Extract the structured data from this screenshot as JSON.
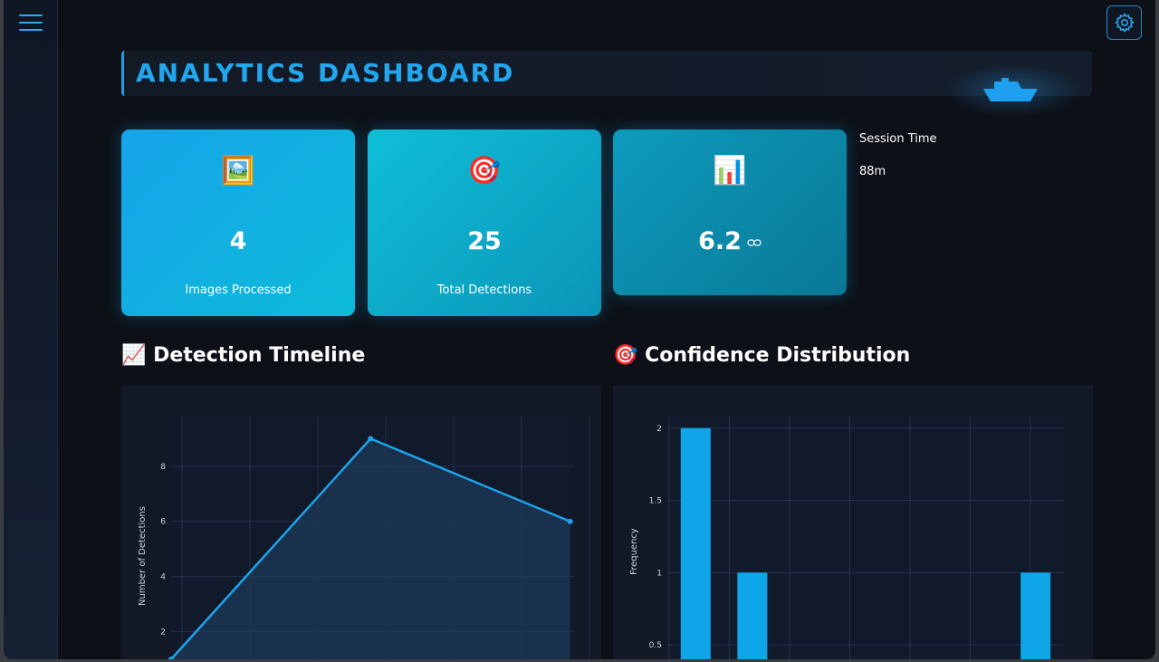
{
  "header": {
    "title": "ANALYTICS DASHBOARD"
  },
  "sidebar": {
    "menu_icon": "hamburger-icon"
  },
  "toolbar": {
    "settings_icon": "gear-icon"
  },
  "colors": {
    "accent": "#1f9de6",
    "background": "#0d1017",
    "panel": "#121826",
    "bar": "#0ea5e9"
  },
  "stats": {
    "images": {
      "icon": "🖼️",
      "value": "4",
      "label": "Images Processed"
    },
    "detections": {
      "icon": "🎯",
      "value": "25",
      "label": "Total Detections"
    },
    "average": {
      "icon": "📊",
      "value": "6.2"
    },
    "session": {
      "label": "Session Time",
      "value": "88m"
    }
  },
  "sections": {
    "timeline": {
      "icon": "📈",
      "title": "Detection Timeline"
    },
    "confidence": {
      "icon": "🎯",
      "title": "Confidence Distribution"
    }
  },
  "chart_data": [
    {
      "type": "area",
      "title": "",
      "xlabel": "",
      "ylabel": "Number of Detections",
      "x": [
        0,
        1,
        2
      ],
      "y": [
        1,
        9,
        6
      ],
      "xlim": [
        0,
        2.02
      ],
      "ylim": [
        1,
        9.8
      ],
      "yticks": [
        2,
        4,
        6,
        8
      ],
      "grid": true
    },
    {
      "type": "bar",
      "title": "",
      "xlabel": "",
      "ylabel": "Frequency",
      "x": [
        0.8,
        0.85,
        1.1
      ],
      "values": [
        2,
        1,
        1
      ],
      "ylim": [
        0.4,
        2.08
      ],
      "yticks": [
        0.5,
        1,
        1.5,
        2
      ],
      "grid": true
    }
  ]
}
